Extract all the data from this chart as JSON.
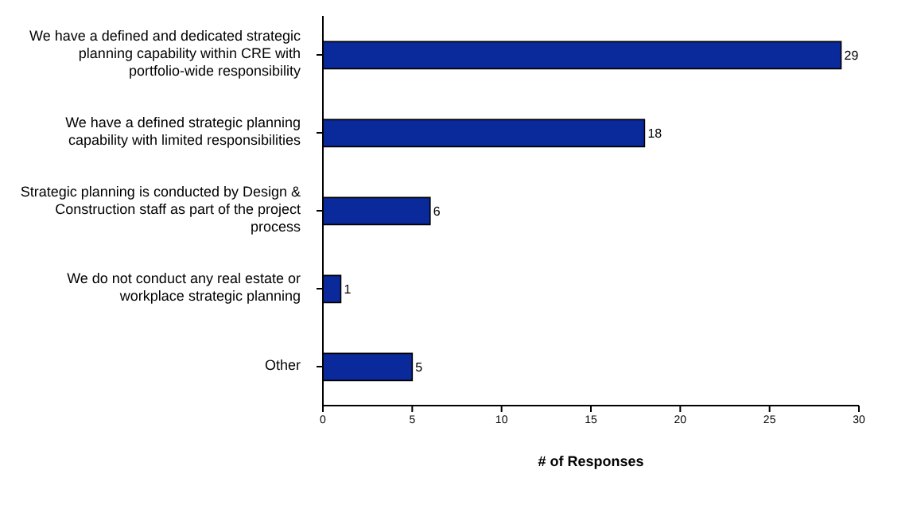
{
  "chart_data": {
    "type": "bar",
    "orientation": "horizontal",
    "categories": [
      "We have a defined and dedicated strategic planning capability within CRE with portfolio-wide responsibility",
      "We have a defined strategic planning capability with limited responsibilities",
      "Strategic planning is conducted by Design & Construction staff as part of the project process",
      "We do not conduct any real estate or workplace strategic planning",
      "Other"
    ],
    "values": [
      29,
      18,
      6,
      1,
      5
    ],
    "color": "#0a2a9c",
    "xlim": [
      0,
      30
    ],
    "xticks": [
      0,
      5,
      10,
      15,
      20,
      25,
      30
    ],
    "xlabel": "# of Responses",
    "data_labels": true
  }
}
